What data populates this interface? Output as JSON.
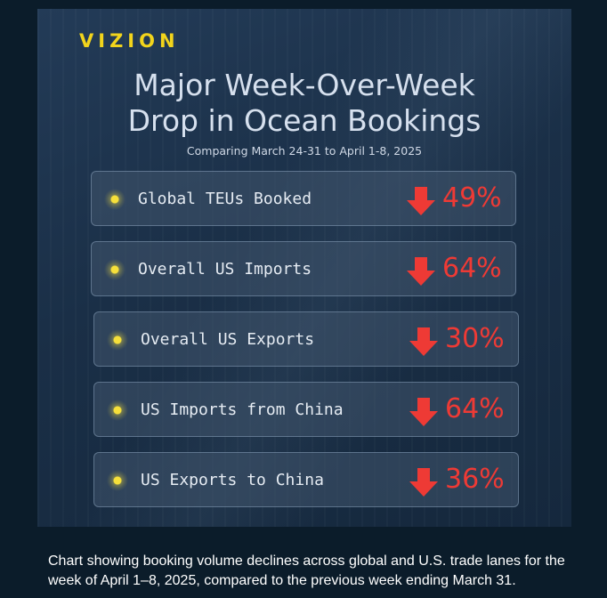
{
  "brand": "VIZION",
  "title": [
    "Major Week-Over-Week",
    "Drop in Ocean Bookings"
  ],
  "subtitle": "Comparing March 24-31 to April 1-8, 2025",
  "colors": {
    "brand": "#f2d41c",
    "decline": "#ee3a35"
  },
  "chart_data": {
    "type": "table",
    "columns": [
      "",
      ""
    ],
    "rows": [
      {
        "label": "Global TEUs Booked",
        "direction": "down",
        "value": "49%",
        "change_percent": -49
      },
      {
        "label": "Overall US Imports",
        "direction": "down",
        "value": "64%",
        "change_percent": -64
      },
      {
        "label": "Overall US Exports",
        "direction": "down",
        "value": "30%",
        "change_percent": -30
      },
      {
        "label": "US Imports from China",
        "direction": "down",
        "value": "64%",
        "change_percent": -64
      },
      {
        "label": "US Exports to China",
        "direction": "down",
        "value": "36%",
        "change_percent": -36
      }
    ]
  },
  "caption": "Chart showing booking volume declines across global and U.S. trade lanes for the week of April 1–8, 2025, compared to the previous week ending March 31."
}
